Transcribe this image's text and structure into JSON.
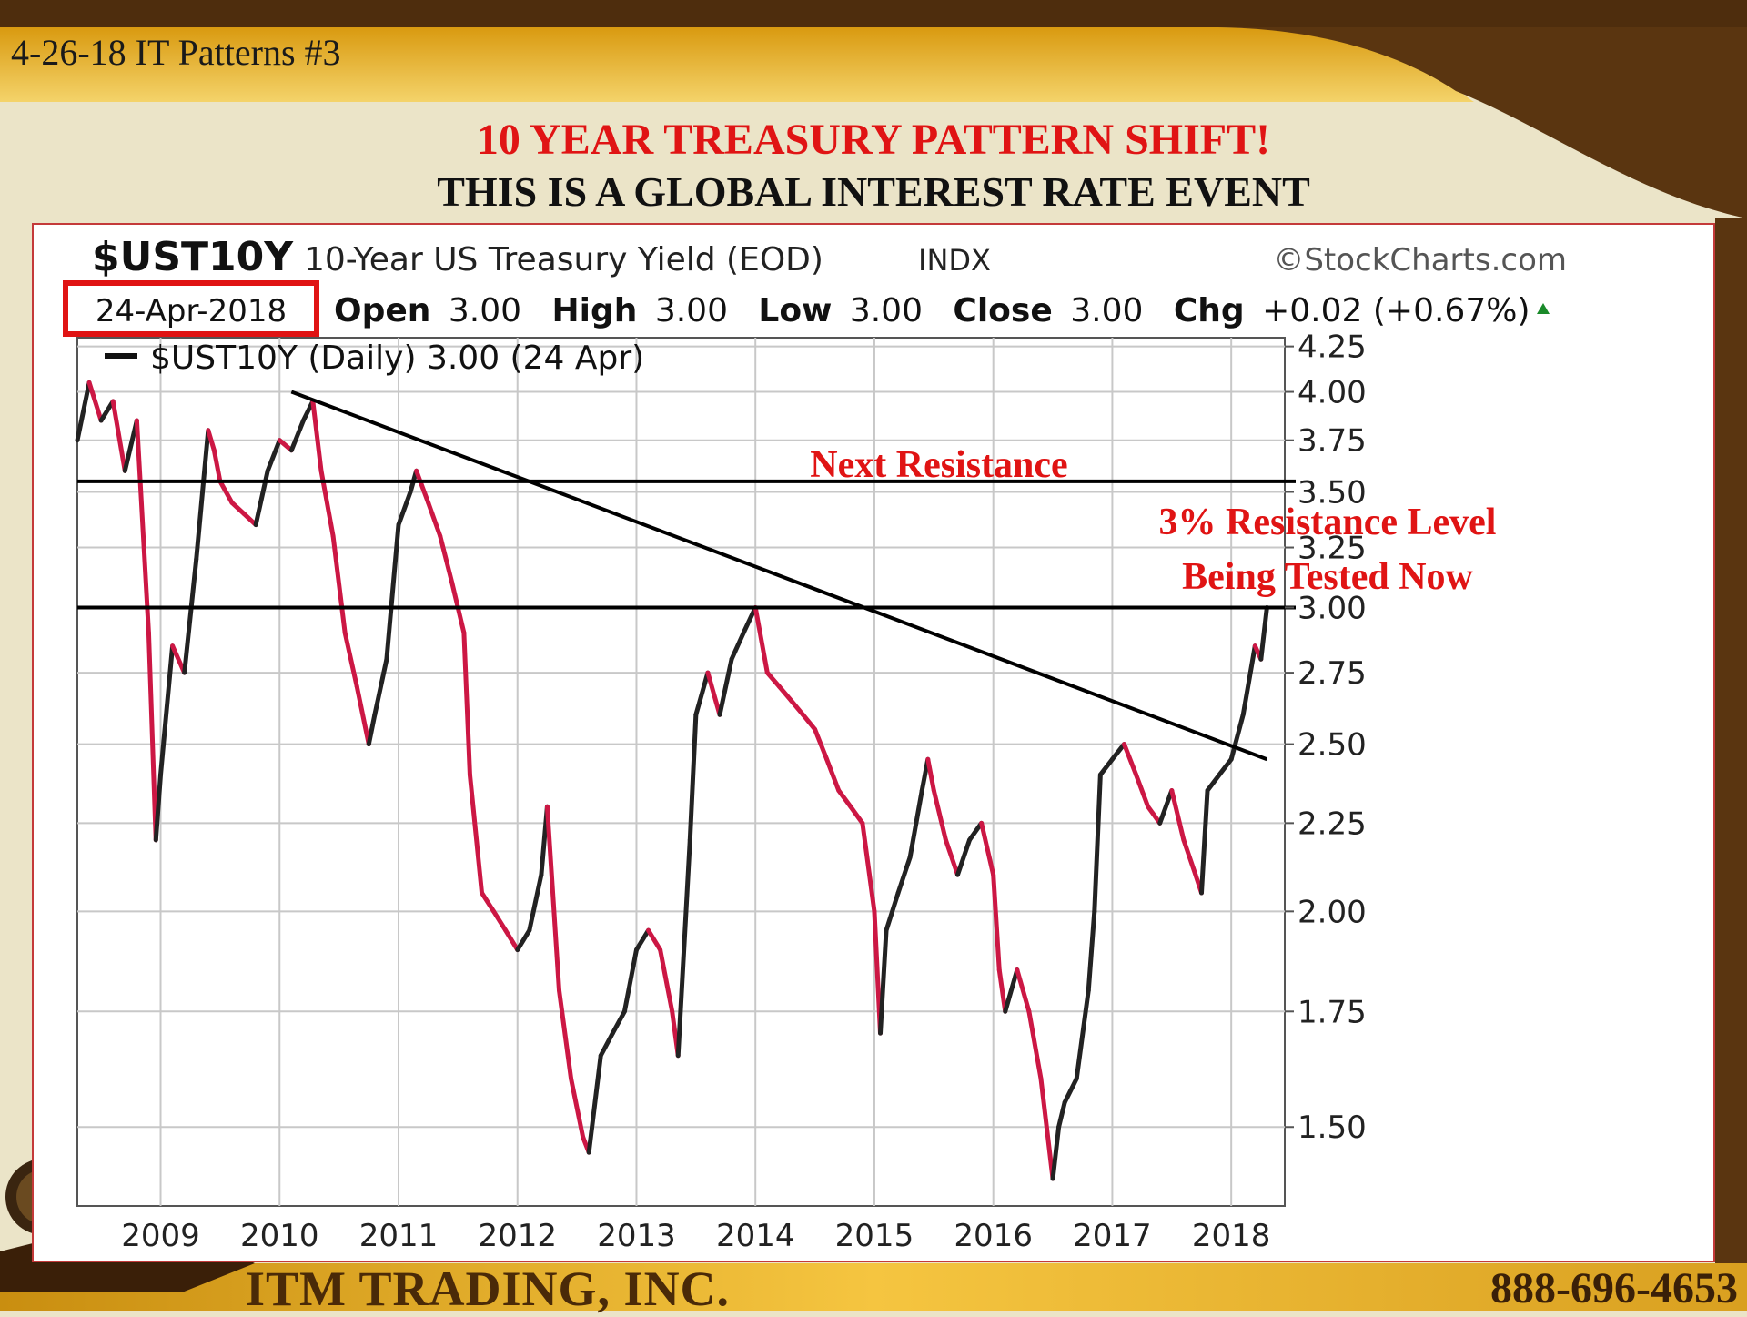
{
  "slide": {
    "tag": "4-26-18 IT Patterns #3",
    "headline": "10 YEAR TREASURY PATTERN SHIFT!",
    "subheadline": "THIS IS A GLOBAL INTEREST RATE EVENT",
    "company": "ITM TRADING, INC.",
    "phone": "888-696-4653",
    "colors": {
      "banner_gold": "#e8b020",
      "brown": "#5a3510",
      "headline_red": "#e01414",
      "cream": "#ebe4c8"
    }
  },
  "chart_header": {
    "symbol": "$UST10Y",
    "description": "10-Year US Treasury Yield (EOD)",
    "exchange": "INDX",
    "source": "©StockCharts.com",
    "date": "24-Apr-2018",
    "open_label": "Open",
    "open": "3.00",
    "high_label": "High",
    "high": "3.00",
    "low_label": "Low",
    "low": "3.00",
    "close_label": "Close",
    "close": "3.00",
    "chg_label": "Chg",
    "chg": "+0.02 (+0.67%)",
    "legend": "$UST10Y (Daily) 3.00 (24 Apr)"
  },
  "annotations": {
    "next_resistance": "Next Resistance",
    "resistance_3pct_line1": "3% Resistance Level",
    "resistance_3pct_line2": "Being Tested Now"
  },
  "chart_data": {
    "type": "line",
    "title": "$UST10Y 10-Year US Treasury Yield (EOD) INDX",
    "y_scale": "log",
    "ylim": [
      1.35,
      4.3
    ],
    "xlim": [
      2008.3,
      2018.45
    ],
    "y_ticks": [
      1.5,
      1.75,
      2.0,
      2.25,
      2.5,
      2.75,
      3.0,
      3.25,
      3.5,
      3.75,
      4.0,
      4.25
    ],
    "y_tick_labels": [
      "1.50",
      "1.75",
      "2.00",
      "2.25",
      "2.50",
      "2.75",
      "3.00",
      "3.25",
      "3.50",
      "3.75",
      "4.00",
      "4.25"
    ],
    "x_ticks": [
      2009,
      2010,
      2011,
      2012,
      2013,
      2014,
      2015,
      2016,
      2017,
      2018
    ],
    "x_tick_labels": [
      "2009",
      "2010",
      "2011",
      "2012",
      "2013",
      "2014",
      "2015",
      "2016",
      "2017",
      "2018"
    ],
    "grid": true,
    "legend_position": "top-left",
    "colors": {
      "line_up": "#222222",
      "line_down": "#cc1744"
    },
    "series": [
      {
        "name": "$UST10Y (Daily)",
        "x": [
          2008.3,
          2008.4,
          2008.5,
          2008.6,
          2008.7,
          2008.8,
          2008.9,
          2008.96,
          2009.0,
          2009.1,
          2009.2,
          2009.3,
          2009.4,
          2009.45,
          2009.5,
          2009.6,
          2009.7,
          2009.8,
          2009.9,
          2010.0,
          2010.1,
          2010.2,
          2010.28,
          2010.35,
          2010.45,
          2010.55,
          2010.65,
          2010.75,
          2010.8,
          2010.9,
          2011.0,
          2011.1,
          2011.15,
          2011.25,
          2011.35,
          2011.45,
          2011.55,
          2011.6,
          2011.7,
          2011.8,
          2011.9,
          2012.0,
          2012.1,
          2012.2,
          2012.25,
          2012.35,
          2012.45,
          2012.55,
          2012.6,
          2012.7,
          2012.8,
          2012.9,
          2013.0,
          2013.1,
          2013.2,
          2013.3,
          2013.35,
          2013.45,
          2013.5,
          2013.6,
          2013.7,
          2013.8,
          2013.9,
          2014.0,
          2014.1,
          2014.2,
          2014.3,
          2014.4,
          2014.5,
          2014.6,
          2014.7,
          2014.8,
          2014.9,
          2015.0,
          2015.05,
          2015.1,
          2015.2,
          2015.3,
          2015.4,
          2015.45,
          2015.5,
          2015.6,
          2015.7,
          2015.8,
          2015.9,
          2016.0,
          2016.05,
          2016.1,
          2016.2,
          2016.3,
          2016.4,
          2016.5,
          2016.55,
          2016.6,
          2016.7,
          2016.8,
          2016.85,
          2016.9,
          2017.0,
          2017.1,
          2017.2,
          2017.3,
          2017.4,
          2017.5,
          2017.6,
          2017.7,
          2017.75,
          2017.8,
          2017.9,
          2018.0,
          2018.1,
          2018.2,
          2018.25,
          2018.3
        ],
        "y": [
          3.75,
          4.05,
          3.85,
          3.95,
          3.6,
          3.85,
          2.9,
          2.2,
          2.4,
          2.85,
          2.75,
          3.2,
          3.8,
          3.7,
          3.55,
          3.45,
          3.4,
          3.35,
          3.6,
          3.75,
          3.7,
          3.85,
          3.95,
          3.6,
          3.3,
          2.9,
          2.7,
          2.5,
          2.6,
          2.8,
          3.35,
          3.5,
          3.6,
          3.45,
          3.3,
          3.1,
          2.9,
          2.4,
          2.05,
          2.0,
          1.95,
          1.9,
          1.95,
          2.1,
          2.3,
          1.8,
          1.6,
          1.48,
          1.45,
          1.65,
          1.7,
          1.75,
          1.9,
          1.95,
          1.9,
          1.75,
          1.65,
          2.2,
          2.6,
          2.75,
          2.6,
          2.8,
          2.9,
          3.0,
          2.75,
          2.7,
          2.65,
          2.6,
          2.55,
          2.45,
          2.35,
          2.3,
          2.25,
          2.0,
          1.7,
          1.95,
          2.05,
          2.15,
          2.35,
          2.45,
          2.35,
          2.2,
          2.1,
          2.2,
          2.25,
          2.1,
          1.85,
          1.75,
          1.85,
          1.75,
          1.6,
          1.4,
          1.5,
          1.55,
          1.6,
          1.8,
          2.0,
          2.4,
          2.45,
          2.5,
          2.4,
          2.3,
          2.25,
          2.35,
          2.2,
          2.1,
          2.05,
          2.35,
          2.4,
          2.45,
          2.6,
          2.85,
          2.8,
          3.0
        ]
      }
    ],
    "resistance_levels": [
      3.0,
      3.55
    ],
    "trendline": {
      "x": [
        2010.1,
        2018.3
      ],
      "y": [
        4.0,
        2.45
      ]
    }
  }
}
